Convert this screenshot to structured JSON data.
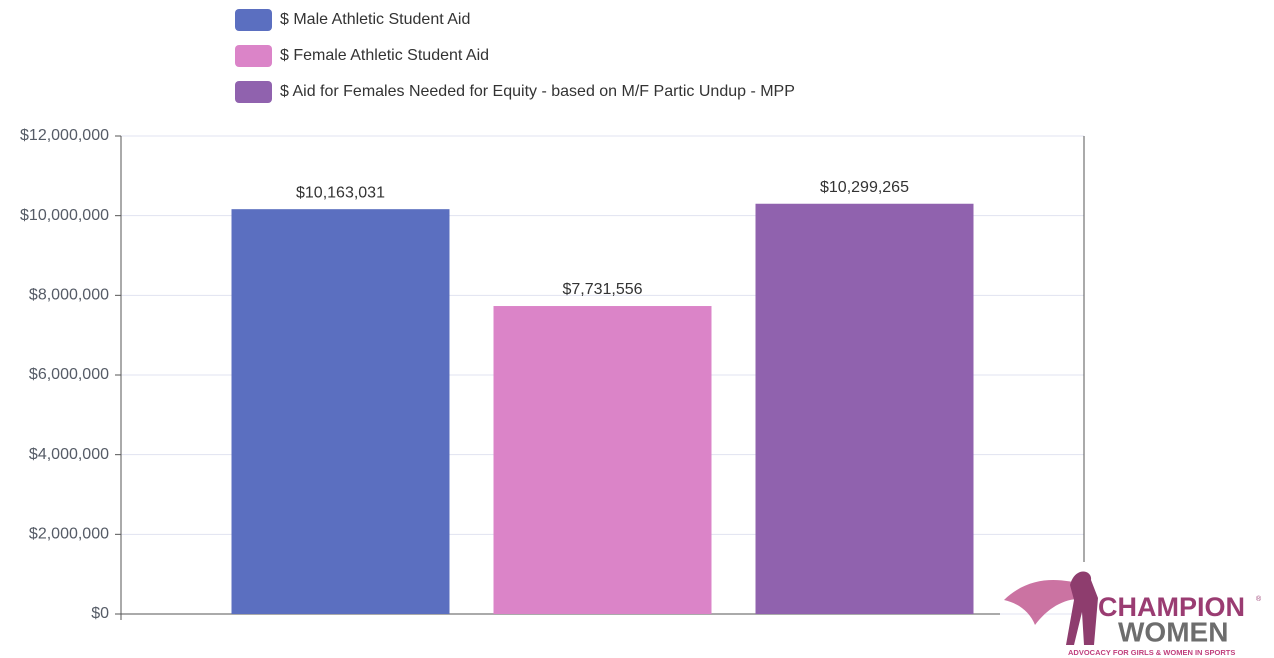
{
  "chart_data": {
    "type": "bar",
    "series": [
      {
        "name": "$ Male Athletic Student Aid",
        "color": "#5b6fc0",
        "values": [
          10163031
        ],
        "value_labels": [
          "$10,163,031"
        ]
      },
      {
        "name": "$ Female Athletic Student Aid",
        "color": "#db84c8",
        "values": [
          7731556
        ],
        "value_labels": [
          "$7,731,556"
        ]
      },
      {
        "name": "$ Aid for Females Needed for Equity - based on M/F Partic Undup - MPP",
        "color": "#9062ae",
        "values": [
          10299265
        ],
        "value_labels": [
          "$10,299,265"
        ]
      }
    ],
    "ylim": [
      0,
      12000000
    ],
    "yticks": [
      {
        "value": 0,
        "label": "$0"
      },
      {
        "value": 2000000,
        "label": "$2,000,000"
      },
      {
        "value": 4000000,
        "label": "$4,000,000"
      },
      {
        "value": 6000000,
        "label": "$6,000,000"
      },
      {
        "value": 8000000,
        "label": "$8,000,000"
      },
      {
        "value": 10000000,
        "label": "$10,000,000"
      },
      {
        "value": 12000000,
        "label": "$12,000,000"
      }
    ],
    "grid": true,
    "legend": "top"
  },
  "logo": {
    "line1": "CHAMPION",
    "mark": "®",
    "line2": "WOMEN",
    "tagline": "ADVOCACY FOR GIRLS & WOMEN IN SPORTS"
  }
}
